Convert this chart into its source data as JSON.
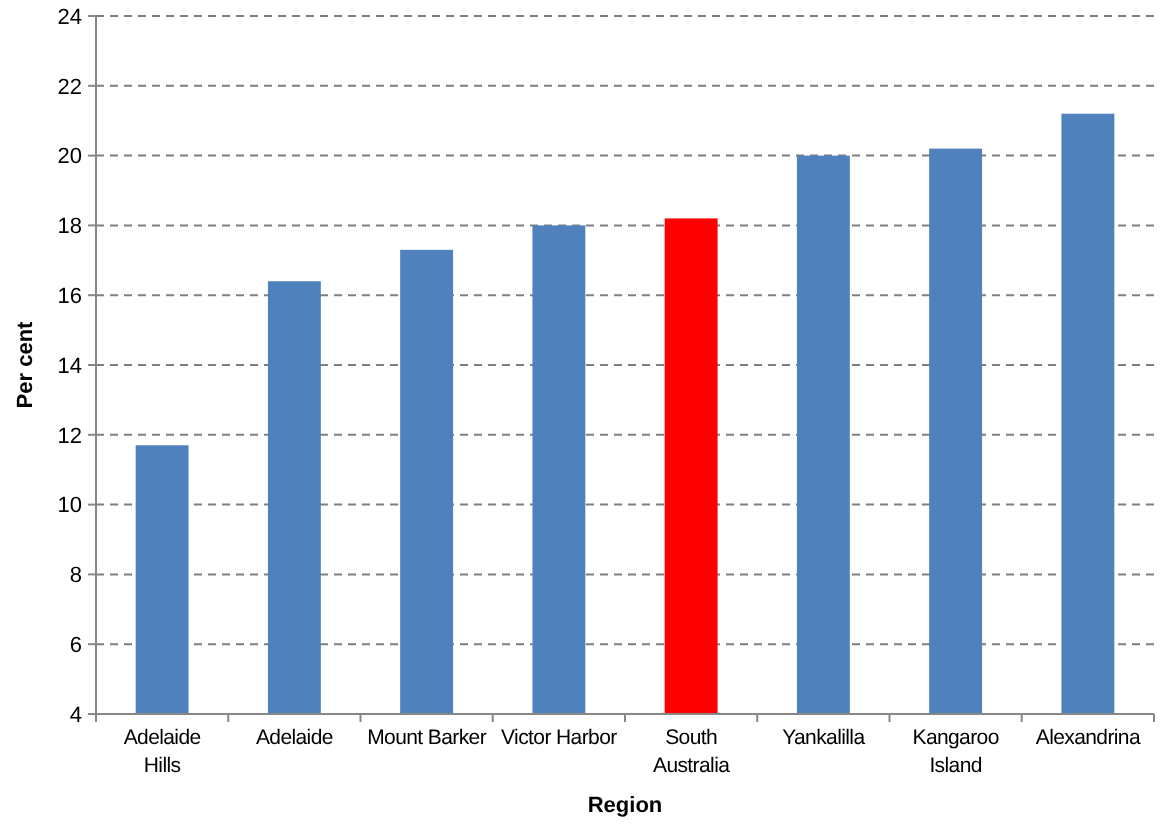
{
  "chart_data": {
    "type": "bar",
    "xlabel": "Region",
    "ylabel": "Per cent",
    "categories": [
      "Adelaide Hills",
      "Adelaide",
      "Mount Barker",
      "Victor Harbor",
      "South Australia",
      "Yankalilla",
      "Kangaroo Island",
      "Alexandrina"
    ],
    "values": [
      11.7,
      16.4,
      17.3,
      18.0,
      18.2,
      20.0,
      20.2,
      21.2
    ],
    "colors": [
      "#4f81bd",
      "#4f81bd",
      "#4f81bd",
      "#4f81bd",
      "#ff0000",
      "#4f81bd",
      "#4f81bd",
      "#4f81bd"
    ],
    "ylim": [
      4,
      24
    ],
    "yticks": [
      4,
      6,
      8,
      10,
      12,
      14,
      16,
      18,
      20,
      22,
      24
    ],
    "grid": "y"
  }
}
